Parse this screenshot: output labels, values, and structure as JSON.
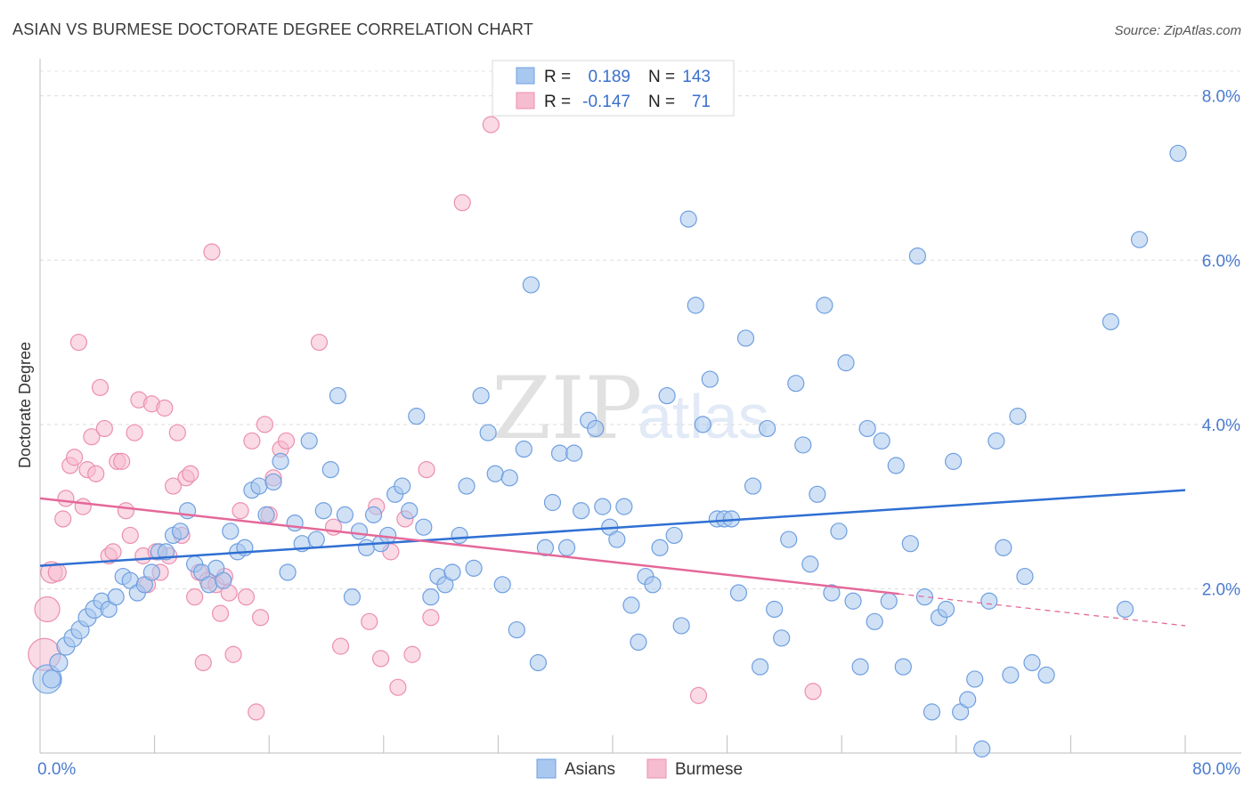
{
  "header": {
    "title": "ASIAN VS BURMESE DOCTORATE DEGREE CORRELATION CHART",
    "source": "Source: ZipAtlas.com"
  },
  "colors": {
    "asian_fill": "#a9c8ef",
    "asian_stroke": "#6f9fe0",
    "asian_line": "#2f6fd3",
    "burmese_fill": "#f6bcd0",
    "burmese_stroke": "#ec8fb0",
    "burmese_line": "#e4689a",
    "tick_text": "#4a7bd0"
  },
  "stats_legend": {
    "rows": [
      {
        "r_label": "R =",
        "r_value": "0.189",
        "n_label": "N =",
        "n_value": "143"
      },
      {
        "r_label": "R =",
        "r_value": "-0.147",
        "n_label": "N =",
        "n_value": "71"
      }
    ]
  },
  "bottom_legend": {
    "items": [
      "Asians",
      "Burmese"
    ]
  },
  "watermark": {
    "zip": "ZIP",
    "atlas": "atlas"
  },
  "chart_data": {
    "type": "scatter",
    "title": "ASIAN VS BURMESE DOCTORATE DEGREE CORRELATION CHART",
    "xlabel": "",
    "ylabel": "Doctorate Degree",
    "xlim": [
      0,
      80
    ],
    "ylim": [
      0,
      8.3
    ],
    "x_tick_labels": [
      "0.0%",
      "80.0%"
    ],
    "y_ticks": [
      2,
      4,
      6,
      8
    ],
    "y_tick_labels": [
      "2.0%",
      "4.0%",
      "6.0%",
      "8.0%"
    ],
    "grid": "horizontal dashed",
    "legend_position": "top-center",
    "series": [
      {
        "name": "Asians",
        "trend": {
          "x": [
            0,
            80
          ],
          "y": [
            2.28,
            3.2
          ],
          "solid_to": 80
        },
        "points": [
          [
            0.5,
            0.9,
            16
          ],
          [
            0.8,
            0.9,
            10
          ],
          [
            1.3,
            1.1,
            10
          ],
          [
            1.8,
            1.3,
            10
          ],
          [
            2.3,
            1.4,
            10
          ],
          [
            2.8,
            1.5,
            10
          ],
          [
            3.3,
            1.65,
            10
          ],
          [
            3.8,
            1.75,
            10
          ],
          [
            4.3,
            1.85,
            9
          ],
          [
            4.8,
            1.75,
            9
          ],
          [
            5.3,
            1.9,
            9
          ],
          [
            5.8,
            2.15,
            9
          ],
          [
            6.3,
            2.1,
            9
          ],
          [
            6.8,
            1.95,
            9
          ],
          [
            7.3,
            2.05,
            9
          ],
          [
            7.8,
            2.2,
            9
          ],
          [
            8.3,
            2.45,
            9
          ],
          [
            8.8,
            2.45,
            9
          ],
          [
            9.3,
            2.65,
            9
          ],
          [
            9.8,
            2.7,
            9
          ],
          [
            10.3,
            2.95,
            9
          ],
          [
            10.8,
            2.3,
            9
          ],
          [
            11.3,
            2.2,
            9
          ],
          [
            11.8,
            2.05,
            9
          ],
          [
            12.3,
            2.25,
            9
          ],
          [
            12.8,
            2.1,
            9
          ],
          [
            13.3,
            2.7,
            9
          ],
          [
            13.8,
            2.45,
            9
          ],
          [
            14.3,
            2.5,
            9
          ],
          [
            14.8,
            3.2,
            9
          ],
          [
            15.3,
            3.25,
            9
          ],
          [
            15.8,
            2.9,
            9
          ],
          [
            16.3,
            3.3,
            9
          ],
          [
            16.8,
            3.55,
            9
          ],
          [
            17.3,
            2.2,
            9
          ],
          [
            17.8,
            2.8,
            9
          ],
          [
            18.3,
            2.55,
            9
          ],
          [
            18.8,
            3.8,
            9
          ],
          [
            19.3,
            2.6,
            9
          ],
          [
            19.8,
            2.95,
            9
          ],
          [
            20.3,
            3.45,
            9
          ],
          [
            20.8,
            4.35,
            9
          ],
          [
            21.3,
            2.9,
            9
          ],
          [
            21.8,
            1.9,
            9
          ],
          [
            22.3,
            2.7,
            9
          ],
          [
            22.8,
            2.5,
            9
          ],
          [
            23.3,
            2.9,
            9
          ],
          [
            23.8,
            2.55,
            9
          ],
          [
            24.3,
            2.65,
            9
          ],
          [
            24.8,
            3.15,
            9
          ],
          [
            25.3,
            3.25,
            9
          ],
          [
            25.8,
            2.95,
            9
          ],
          [
            26.3,
            4.1,
            9
          ],
          [
            26.8,
            2.75,
            9
          ],
          [
            27.3,
            1.9,
            9
          ],
          [
            27.8,
            2.15,
            9
          ],
          [
            28.3,
            2.05,
            9
          ],
          [
            28.8,
            2.2,
            9
          ],
          [
            29.3,
            2.65,
            9
          ],
          [
            29.8,
            3.25,
            9
          ],
          [
            30.3,
            2.25,
            9
          ],
          [
            30.8,
            4.35,
            9
          ],
          [
            31.3,
            3.9,
            9
          ],
          [
            31.8,
            3.4,
            9
          ],
          [
            32.3,
            2.05,
            9
          ],
          [
            32.8,
            3.35,
            9
          ],
          [
            33.3,
            1.5,
            9
          ],
          [
            33.8,
            3.7,
            9
          ],
          [
            34.3,
            5.7,
            9
          ],
          [
            34.8,
            1.1,
            9
          ],
          [
            35.3,
            2.5,
            9
          ],
          [
            35.8,
            3.05,
            9
          ],
          [
            36.3,
            3.65,
            9
          ],
          [
            36.8,
            2.5,
            9
          ],
          [
            37.3,
            3.65,
            9
          ],
          [
            37.8,
            2.95,
            9
          ],
          [
            38.3,
            4.05,
            9
          ],
          [
            38.8,
            3.95,
            9
          ],
          [
            39.3,
            3.0,
            9
          ],
          [
            39.8,
            2.75,
            9
          ],
          [
            40.3,
            2.6,
            9
          ],
          [
            40.8,
            3.0,
            9
          ],
          [
            41.3,
            1.8,
            9
          ],
          [
            41.8,
            1.35,
            9
          ],
          [
            42.3,
            2.15,
            9
          ],
          [
            42.8,
            2.05,
            9
          ],
          [
            43.3,
            2.5,
            9
          ],
          [
            43.8,
            4.35,
            9
          ],
          [
            44.3,
            2.65,
            9
          ],
          [
            44.8,
            1.55,
            9
          ],
          [
            45.3,
            6.5,
            9
          ],
          [
            45.8,
            5.45,
            9
          ],
          [
            46.3,
            4.0,
            9
          ],
          [
            46.8,
            4.55,
            9
          ],
          [
            47.3,
            2.85,
            9
          ],
          [
            47.8,
            2.85,
            9
          ],
          [
            48.3,
            2.85,
            9
          ],
          [
            48.8,
            1.95,
            9
          ],
          [
            49.3,
            5.05,
            9
          ],
          [
            49.8,
            3.25,
            9
          ],
          [
            50.3,
            1.05,
            9
          ],
          [
            50.8,
            3.95,
            9
          ],
          [
            51.3,
            1.75,
            9
          ],
          [
            51.8,
            1.4,
            9
          ],
          [
            52.3,
            2.6,
            9
          ],
          [
            52.8,
            4.5,
            9
          ],
          [
            53.3,
            3.75,
            9
          ],
          [
            53.8,
            2.3,
            9
          ],
          [
            54.3,
            3.15,
            9
          ],
          [
            54.8,
            5.45,
            9
          ],
          [
            55.3,
            1.95,
            9
          ],
          [
            55.8,
            2.7,
            9
          ],
          [
            56.3,
            4.75,
            9
          ],
          [
            56.8,
            1.85,
            9
          ],
          [
            57.3,
            1.05,
            9
          ],
          [
            57.8,
            3.95,
            9
          ],
          [
            58.3,
            1.6,
            9
          ],
          [
            58.8,
            3.8,
            9
          ],
          [
            59.3,
            1.85,
            9
          ],
          [
            59.8,
            3.5,
            9
          ],
          [
            60.3,
            1.05,
            9
          ],
          [
            60.8,
            2.55,
            9
          ],
          [
            61.3,
            6.05,
            9
          ],
          [
            61.8,
            1.9,
            9
          ],
          [
            62.3,
            0.5,
            9
          ],
          [
            62.8,
            1.65,
            9
          ],
          [
            63.3,
            1.75,
            9
          ],
          [
            63.8,
            3.55,
            9
          ],
          [
            64.3,
            0.5,
            9
          ],
          [
            64.8,
            0.65,
            9
          ],
          [
            65.3,
            0.9,
            9
          ],
          [
            65.8,
            0.05,
            9
          ],
          [
            66.3,
            1.85,
            9
          ],
          [
            66.8,
            3.8,
            9
          ],
          [
            67.3,
            2.5,
            9
          ],
          [
            67.8,
            0.95,
            9
          ],
          [
            68.3,
            4.1,
            9
          ],
          [
            68.8,
            2.15,
            9
          ],
          [
            69.3,
            1.1,
            9
          ],
          [
            70.3,
            0.95,
            9
          ],
          [
            74.8,
            5.25,
            9
          ],
          [
            75.8,
            1.75,
            9
          ],
          [
            76.8,
            6.25,
            9
          ],
          [
            79.5,
            7.3,
            9
          ]
        ]
      },
      {
        "name": "Burmese",
        "trend": {
          "x": [
            0,
            80
          ],
          "y": [
            3.1,
            1.55
          ],
          "solid_to": 60
        },
        "points": [
          [
            0.3,
            1.2,
            18
          ],
          [
            0.5,
            1.75,
            14
          ],
          [
            0.8,
            2.2,
            12
          ],
          [
            1.2,
            2.2,
            10
          ],
          [
            1.6,
            2.85,
            9
          ],
          [
            1.8,
            3.1,
            9
          ],
          [
            2.1,
            3.5,
            9
          ],
          [
            2.4,
            3.6,
            9
          ],
          [
            2.7,
            5.0,
            9
          ],
          [
            3.0,
            3.0,
            9
          ],
          [
            3.3,
            3.45,
            9
          ],
          [
            3.6,
            3.85,
            9
          ],
          [
            3.9,
            3.4,
            9
          ],
          [
            4.2,
            4.45,
            9
          ],
          [
            4.5,
            3.95,
            9
          ],
          [
            4.8,
            2.4,
            9
          ],
          [
            5.1,
            2.45,
            9
          ],
          [
            5.4,
            3.55,
            9
          ],
          [
            5.7,
            3.55,
            9
          ],
          [
            6.0,
            2.95,
            9
          ],
          [
            6.3,
            2.65,
            9
          ],
          [
            6.6,
            3.9,
            9
          ],
          [
            6.9,
            4.3,
            9
          ],
          [
            7.2,
            2.4,
            9
          ],
          [
            7.5,
            2.05,
            9
          ],
          [
            7.8,
            4.25,
            9
          ],
          [
            8.1,
            2.45,
            9
          ],
          [
            8.4,
            2.2,
            9
          ],
          [
            8.7,
            4.2,
            9
          ],
          [
            9.0,
            2.4,
            9
          ],
          [
            9.3,
            3.25,
            9
          ],
          [
            9.6,
            3.9,
            9
          ],
          [
            9.9,
            2.65,
            9
          ],
          [
            10.2,
            3.35,
            9
          ],
          [
            10.5,
            3.4,
            9
          ],
          [
            10.8,
            1.9,
            9
          ],
          [
            11.1,
            2.2,
            9
          ],
          [
            11.4,
            1.1,
            9
          ],
          [
            11.7,
            2.1,
            9
          ],
          [
            12.0,
            6.1,
            9
          ],
          [
            12.3,
            2.05,
            9
          ],
          [
            12.6,
            1.7,
            9
          ],
          [
            12.9,
            2.15,
            9
          ],
          [
            13.2,
            1.95,
            9
          ],
          [
            13.5,
            1.2,
            9
          ],
          [
            14.0,
            2.95,
            9
          ],
          [
            14.4,
            1.9,
            9
          ],
          [
            14.8,
            3.8,
            9
          ],
          [
            15.1,
            0.5,
            9
          ],
          [
            15.4,
            1.65,
            9
          ],
          [
            15.7,
            4.0,
            9
          ],
          [
            16.0,
            2.9,
            9
          ],
          [
            16.3,
            3.35,
            9
          ],
          [
            16.8,
            3.7,
            9
          ],
          [
            17.2,
            3.8,
            9
          ],
          [
            19.5,
            5.0,
            9
          ],
          [
            20.5,
            2.75,
            9
          ],
          [
            21.0,
            1.3,
            9
          ],
          [
            23.0,
            1.6,
            9
          ],
          [
            23.5,
            3.0,
            9
          ],
          [
            23.8,
            1.15,
            9
          ],
          [
            24.5,
            2.45,
            9
          ],
          [
            25.0,
            0.8,
            9
          ],
          [
            25.5,
            2.85,
            9
          ],
          [
            26.0,
            1.2,
            9
          ],
          [
            27.0,
            3.45,
            9
          ],
          [
            27.3,
            1.65,
            9
          ],
          [
            29.5,
            6.7,
            9
          ],
          [
            31.5,
            7.65,
            9
          ],
          [
            46.0,
            0.7,
            9
          ],
          [
            54.0,
            0.75,
            9
          ]
        ]
      }
    ]
  }
}
